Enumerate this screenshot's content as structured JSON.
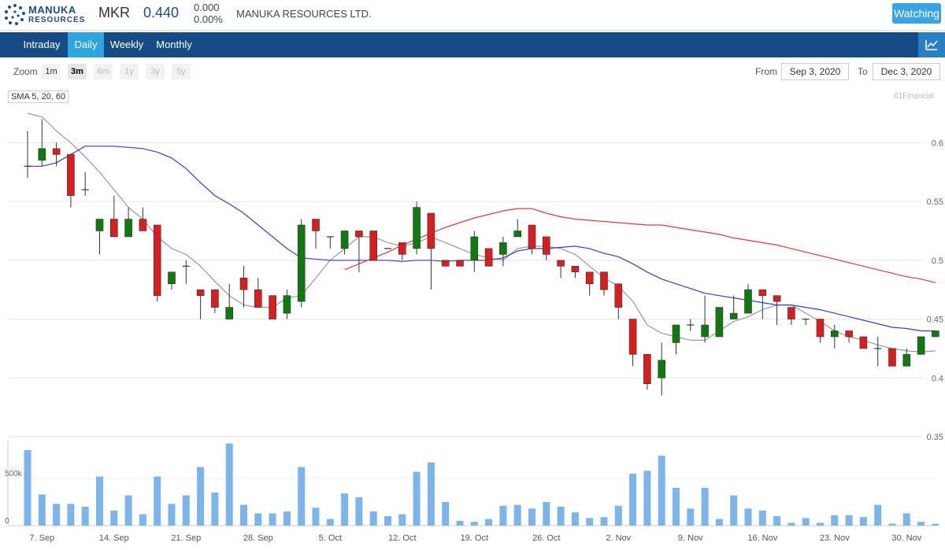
{
  "header": {
    "logo_line1": "MANUKA",
    "logo_line2": "RESOURCES",
    "ticker": "MKR",
    "price": "0.440",
    "change_abs": "0.000",
    "change_pct": "0.00%",
    "company": "MANUKA RESOURCES LTD.",
    "watch_label": "Watching",
    "logo_color": "#1b4e8c"
  },
  "nav": {
    "tabs": [
      {
        "label": "Intraday",
        "active": false
      },
      {
        "label": "Daily",
        "active": true
      },
      {
        "label": "Weekly",
        "active": false
      },
      {
        "label": "Monthly",
        "active": false
      }
    ],
    "chart_icon": "line-chart-icon"
  },
  "toolbar": {
    "zoom_label": "Zoom",
    "zoom_options": [
      {
        "label": "1m",
        "state": "normal"
      },
      {
        "label": "3m",
        "state": "active"
      },
      {
        "label": "6m",
        "state": "disabled"
      },
      {
        "label": "1y",
        "state": "disabled"
      },
      {
        "label": "3y",
        "state": "disabled"
      },
      {
        "label": "5y",
        "state": "disabled"
      }
    ],
    "from_label": "From",
    "from_value": "Sep 3, 2020",
    "to_label": "To",
    "to_value": "Dec 3, 2020"
  },
  "indicator_label": "SMA 5, 20, 60",
  "credit": "61Financial",
  "chart_data": {
    "type": "candlestick",
    "colors": {
      "up": "#0f7a0f",
      "down": "#d81e1e",
      "sma5": "#999999",
      "sma20": "#3a3ad6",
      "sma60": "#e03a3a",
      "volume": "#7cb5ec"
    },
    "price_axis": {
      "ticks": [
        "0.6",
        "0.55",
        "0.5",
        "0.45",
        "0.4",
        "0.35"
      ],
      "ylim": [
        0.35,
        0.625
      ]
    },
    "volume_axis": {
      "ticks": [
        "500k",
        "0"
      ],
      "ylim": [
        0,
        900000
      ]
    },
    "x_tick_labels": [
      {
        "i": 1,
        "label": "7. Sep"
      },
      {
        "i": 6,
        "label": "14. Sep"
      },
      {
        "i": 11,
        "label": "21. Sep"
      },
      {
        "i": 16,
        "label": "28. Sep"
      },
      {
        "i": 21,
        "label": "5. Oct"
      },
      {
        "i": 26,
        "label": "12. Oct"
      },
      {
        "i": 31,
        "label": "19. Oct"
      },
      {
        "i": 36,
        "label": "26. Oct"
      },
      {
        "i": 41,
        "label": "2. Nov"
      },
      {
        "i": 46,
        "label": "9. Nov"
      },
      {
        "i": 51,
        "label": "16. Nov"
      },
      {
        "i": 56,
        "label": "23. Nov"
      },
      {
        "i": 61,
        "label": "30. Nov"
      }
    ],
    "candles": [
      [
        0.58,
        0.61,
        0.57,
        0.58,
        800000
      ],
      [
        0.585,
        0.62,
        0.58,
        0.595,
        330000
      ],
      [
        0.595,
        0.6,
        0.58,
        0.59,
        230000
      ],
      [
        0.59,
        0.59,
        0.545,
        0.555,
        230000
      ],
      [
        0.56,
        0.575,
        0.555,
        0.56,
        200000
      ],
      [
        0.525,
        0.535,
        0.505,
        0.535,
        520000
      ],
      [
        0.535,
        0.555,
        0.52,
        0.52,
        160000
      ],
      [
        0.52,
        0.545,
        0.52,
        0.535,
        320000
      ],
      [
        0.535,
        0.545,
        0.525,
        0.525,
        120000
      ],
      [
        0.53,
        0.53,
        0.465,
        0.47,
        520000
      ],
      [
        0.48,
        0.49,
        0.475,
        0.49,
        230000
      ],
      [
        0.495,
        0.5,
        0.48,
        0.495,
        320000
      ],
      [
        0.475,
        0.475,
        0.45,
        0.47,
        620000
      ],
      [
        0.475,
        0.475,
        0.455,
        0.46,
        350000
      ],
      [
        0.45,
        0.48,
        0.45,
        0.46,
        870000
      ],
      [
        0.485,
        0.495,
        0.46,
        0.475,
        220000
      ],
      [
        0.475,
        0.485,
        0.46,
        0.46,
        130000
      ],
      [
        0.47,
        0.47,
        0.45,
        0.45,
        130000
      ],
      [
        0.455,
        0.475,
        0.45,
        0.47,
        150000
      ],
      [
        0.465,
        0.535,
        0.46,
        0.53,
        620000
      ],
      [
        0.535,
        0.535,
        0.51,
        0.525,
        190000
      ],
      [
        0.52,
        0.52,
        0.51,
        0.52,
        70000
      ],
      [
        0.51,
        0.525,
        0.505,
        0.525,
        340000
      ],
      [
        0.525,
        0.525,
        0.49,
        0.52,
        300000
      ],
      [
        0.525,
        0.525,
        0.5,
        0.5,
        150000
      ],
      [
        0.51,
        0.51,
        0.51,
        0.51,
        100000
      ],
      [
        0.515,
        0.515,
        0.5,
        0.505,
        120000
      ],
      [
        0.51,
        0.55,
        0.505,
        0.545,
        570000
      ],
      [
        0.54,
        0.54,
        0.475,
        0.51,
        670000
      ],
      [
        0.5,
        0.5,
        0.495,
        0.495,
        250000
      ],
      [
        0.5,
        0.5,
        0.495,
        0.495,
        50000
      ],
      [
        0.5,
        0.525,
        0.49,
        0.52,
        40000
      ],
      [
        0.51,
        0.51,
        0.495,
        0.495,
        70000
      ],
      [
        0.505,
        0.52,
        0.495,
        0.515,
        210000
      ],
      [
        0.52,
        0.535,
        0.52,
        0.525,
        220000
      ],
      [
        0.53,
        0.53,
        0.505,
        0.51,
        180000
      ],
      [
        0.52,
        0.52,
        0.5,
        0.505,
        250000
      ],
      [
        0.5,
        0.5,
        0.485,
        0.495,
        200000
      ],
      [
        0.495,
        0.495,
        0.485,
        0.49,
        140000
      ],
      [
        0.49,
        0.49,
        0.47,
        0.48,
        80000
      ],
      [
        0.49,
        0.49,
        0.47,
        0.475,
        90000
      ],
      [
        0.48,
        0.48,
        0.45,
        0.46,
        210000
      ],
      [
        0.45,
        0.45,
        0.41,
        0.42,
        550000
      ],
      [
        0.42,
        0.42,
        0.39,
        0.395,
        580000
      ],
      [
        0.4,
        0.43,
        0.385,
        0.415,
        740000
      ],
      [
        0.43,
        0.445,
        0.42,
        0.445,
        400000
      ],
      [
        0.445,
        0.45,
        0.44,
        0.445,
        180000
      ],
      [
        0.435,
        0.47,
        0.43,
        0.445,
        400000
      ],
      [
        0.435,
        0.46,
        0.435,
        0.46,
        70000
      ],
      [
        0.45,
        0.47,
        0.45,
        0.455,
        320000
      ],
      [
        0.455,
        0.48,
        0.455,
        0.475,
        180000
      ],
      [
        0.475,
        0.475,
        0.45,
        0.47,
        160000
      ],
      [
        0.47,
        0.47,
        0.445,
        0.465,
        100000
      ],
      [
        0.46,
        0.46,
        0.445,
        0.45,
        30000
      ],
      [
        0.45,
        0.45,
        0.445,
        0.45,
        80000
      ],
      [
        0.45,
        0.45,
        0.43,
        0.435,
        30000
      ],
      [
        0.435,
        0.445,
        0.425,
        0.44,
        110000
      ],
      [
        0.44,
        0.44,
        0.43,
        0.435,
        110000
      ],
      [
        0.435,
        0.435,
        0.425,
        0.425,
        90000
      ],
      [
        0.425,
        0.435,
        0.41,
        0.425,
        220000
      ],
      [
        0.425,
        0.425,
        0.41,
        0.41,
        20000
      ],
      [
        0.41,
        0.425,
        0.41,
        0.42,
        130000
      ],
      [
        0.42,
        0.435,
        0.42,
        0.435,
        40000
      ],
      [
        0.435,
        0.44,
        0.435,
        0.44,
        20000
      ]
    ],
    "sma5": [
      [
        0,
        0.625
      ],
      [
        1,
        0.622
      ],
      [
        2,
        0.61
      ],
      [
        3,
        0.6
      ],
      [
        4,
        0.588
      ],
      [
        5,
        0.575
      ],
      [
        6,
        0.56
      ],
      [
        7,
        0.545
      ],
      [
        8,
        0.535
      ],
      [
        9,
        0.52
      ],
      [
        10,
        0.51
      ],
      [
        11,
        0.505
      ],
      [
        12,
        0.495
      ],
      [
        13,
        0.482
      ],
      [
        14,
        0.47
      ],
      [
        15,
        0.462
      ],
      [
        16,
        0.46
      ],
      [
        17,
        0.46
      ],
      [
        18,
        0.468
      ],
      [
        19,
        0.47
      ],
      [
        20,
        0.485
      ],
      [
        21,
        0.5
      ],
      [
        22,
        0.51
      ],
      [
        23,
        0.52
      ],
      [
        24,
        0.52
      ],
      [
        25,
        0.515
      ],
      [
        26,
        0.512
      ],
      [
        27,
        0.515
      ],
      [
        28,
        0.52
      ],
      [
        29,
        0.515
      ],
      [
        30,
        0.51
      ],
      [
        31,
        0.505
      ],
      [
        32,
        0.502
      ],
      [
        33,
        0.5
      ],
      [
        34,
        0.51
      ],
      [
        35,
        0.512
      ],
      [
        36,
        0.512
      ],
      [
        37,
        0.51
      ],
      [
        38,
        0.505
      ],
      [
        39,
        0.495
      ],
      [
        40,
        0.485
      ],
      [
        41,
        0.478
      ],
      [
        42,
        0.465
      ],
      [
        43,
        0.445
      ],
      [
        44,
        0.438
      ],
      [
        45,
        0.435
      ],
      [
        46,
        0.432
      ],
      [
        47,
        0.432
      ],
      [
        48,
        0.44
      ],
      [
        49,
        0.448
      ],
      [
        50,
        0.452
      ],
      [
        51,
        0.458
      ],
      [
        52,
        0.462
      ],
      [
        53,
        0.462
      ],
      [
        54,
        0.455
      ],
      [
        55,
        0.448
      ],
      [
        56,
        0.44
      ],
      [
        57,
        0.435
      ],
      [
        58,
        0.432
      ],
      [
        59,
        0.428
      ],
      [
        60,
        0.425
      ],
      [
        61,
        0.423
      ],
      [
        62,
        0.422
      ],
      [
        63,
        0.423
      ]
    ],
    "sma20": [
      [
        0,
        0.58
      ],
      [
        1,
        0.58
      ],
      [
        2,
        0.583
      ],
      [
        3,
        0.59
      ],
      [
        4,
        0.597
      ],
      [
        5,
        0.597
      ],
      [
        6,
        0.597
      ],
      [
        7,
        0.596
      ],
      [
        8,
        0.595
      ],
      [
        9,
        0.592
      ],
      [
        10,
        0.587
      ],
      [
        11,
        0.578
      ],
      [
        12,
        0.566
      ],
      [
        13,
        0.555
      ],
      [
        14,
        0.548
      ],
      [
        15,
        0.54
      ],
      [
        16,
        0.53
      ],
      [
        17,
        0.52
      ],
      [
        18,
        0.51
      ],
      [
        19,
        0.502
      ],
      [
        20,
        0.501
      ],
      [
        21,
        0.5
      ],
      [
        22,
        0.5
      ],
      [
        23,
        0.5
      ],
      [
        24,
        0.5
      ],
      [
        25,
        0.5
      ],
      [
        26,
        0.499
      ],
      [
        27,
        0.5
      ],
      [
        28,
        0.5
      ],
      [
        29,
        0.499
      ],
      [
        30,
        0.5
      ],
      [
        31,
        0.5
      ],
      [
        32,
        0.5
      ],
      [
        33,
        0.502
      ],
      [
        34,
        0.508
      ],
      [
        35,
        0.51
      ],
      [
        36,
        0.51
      ],
      [
        37,
        0.511
      ],
      [
        38,
        0.512
      ],
      [
        39,
        0.51
      ],
      [
        40,
        0.506
      ],
      [
        41,
        0.503
      ],
      [
        42,
        0.497
      ],
      [
        43,
        0.49
      ],
      [
        44,
        0.484
      ],
      [
        45,
        0.48
      ],
      [
        46,
        0.476
      ],
      [
        47,
        0.472
      ],
      [
        48,
        0.47
      ],
      [
        49,
        0.468
      ],
      [
        50,
        0.466
      ],
      [
        51,
        0.464
      ],
      [
        52,
        0.462
      ],
      [
        53,
        0.462
      ],
      [
        54,
        0.46
      ],
      [
        55,
        0.458
      ],
      [
        56,
        0.455
      ],
      [
        57,
        0.452
      ],
      [
        58,
        0.449
      ],
      [
        59,
        0.446
      ],
      [
        60,
        0.443
      ],
      [
        61,
        0.442
      ],
      [
        62,
        0.44
      ],
      [
        63,
        0.44
      ]
    ],
    "sma60": [
      [
        22,
        0.492
      ],
      [
        23,
        0.497
      ],
      [
        24,
        0.502
      ],
      [
        25,
        0.507
      ],
      [
        26,
        0.513
      ],
      [
        27,
        0.518
      ],
      [
        28,
        0.523
      ],
      [
        29,
        0.528
      ],
      [
        30,
        0.532
      ],
      [
        31,
        0.536
      ],
      [
        32,
        0.539
      ],
      [
        33,
        0.542
      ],
      [
        34,
        0.544
      ],
      [
        35,
        0.544
      ],
      [
        36,
        0.54
      ],
      [
        37,
        0.537
      ],
      [
        38,
        0.535
      ],
      [
        39,
        0.534
      ],
      [
        40,
        0.533
      ],
      [
        41,
        0.532
      ],
      [
        42,
        0.531
      ],
      [
        43,
        0.53
      ],
      [
        44,
        0.53
      ],
      [
        45,
        0.528
      ],
      [
        46,
        0.526
      ],
      [
        47,
        0.524
      ],
      [
        48,
        0.522
      ],
      [
        49,
        0.519
      ],
      [
        50,
        0.517
      ],
      [
        51,
        0.515
      ],
      [
        52,
        0.513
      ],
      [
        53,
        0.51
      ],
      [
        54,
        0.507
      ],
      [
        55,
        0.504
      ],
      [
        56,
        0.501
      ],
      [
        57,
        0.498
      ],
      [
        58,
        0.495
      ],
      [
        59,
        0.492
      ],
      [
        60,
        0.489
      ],
      [
        61,
        0.486
      ],
      [
        62,
        0.484
      ],
      [
        63,
        0.481
      ]
    ]
  }
}
